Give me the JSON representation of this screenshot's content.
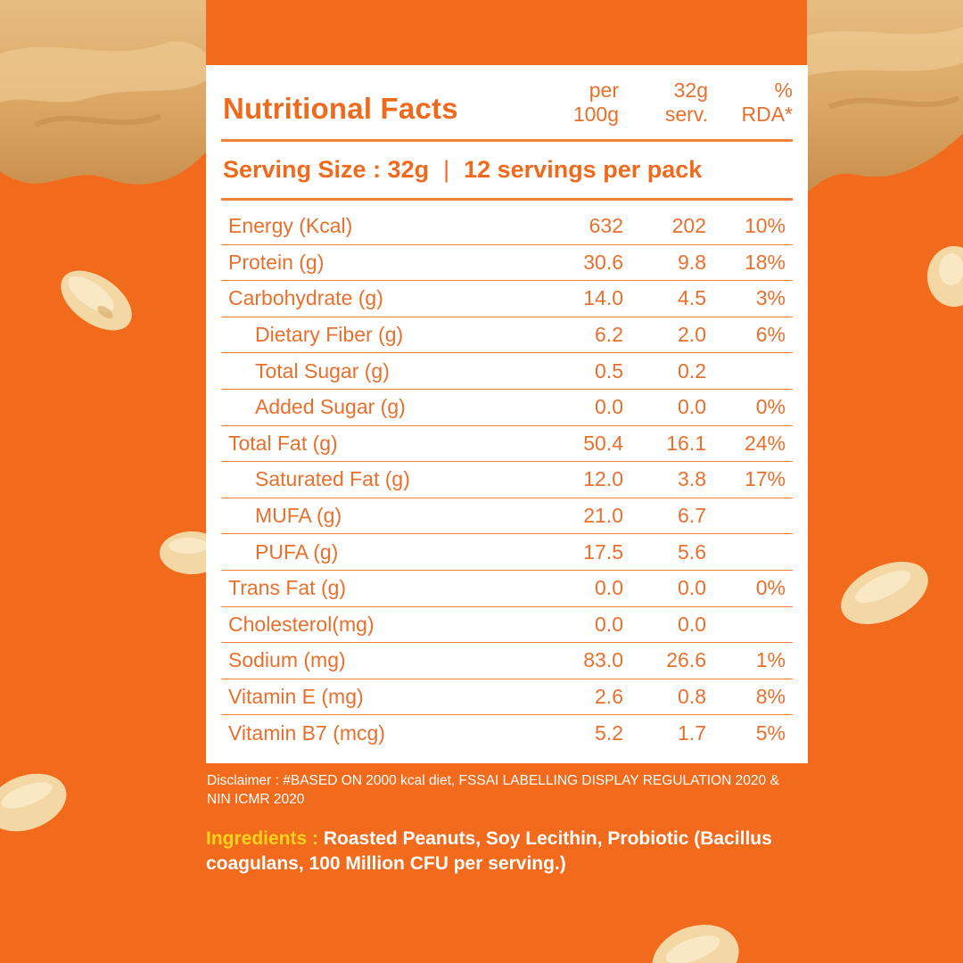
{
  "colors": {
    "background": "#f26a1b",
    "accent_text": "#f06a1d",
    "table_line": "#f0833a",
    "panel": "#ffffff",
    "ingredients_label": "#ffd21e",
    "butter": "#e0ad6e"
  },
  "table": {
    "title": "Nutritional Facts",
    "col_headers": [
      "per\n100g",
      "32g\nserv.",
      "%\nRDA*"
    ],
    "serving_size": "Serving Size : 32g",
    "separator": "|",
    "servings_per_pack": "12 servings per pack",
    "rows": [
      {
        "label": "Energy (Kcal)",
        "per100g": "632",
        "serv": "202",
        "rda": "10%"
      },
      {
        "label": "Protein (g)",
        "per100g": "30.6",
        "serv": "9.8",
        "rda": "18%"
      },
      {
        "label": "Carbohydrate (g)",
        "per100g": "14.0",
        "serv": "4.5",
        "rda": "3%"
      },
      {
        "label": "Dietary Fiber (g)",
        "per100g": "6.2",
        "serv": "2.0",
        "rda": "6%"
      },
      {
        "label": "Total Sugar (g)",
        "per100g": "0.5",
        "serv": "0.2",
        "rda": ""
      },
      {
        "label": "Added Sugar (g)",
        "per100g": "0.0",
        "serv": "0.0",
        "rda": "0%"
      },
      {
        "label": "Total Fat (g)",
        "per100g": "50.4",
        "serv": "16.1",
        "rda": "24%"
      },
      {
        "label": "Saturated Fat (g)",
        "per100g": "12.0",
        "serv": "3.8",
        "rda": "17%"
      },
      {
        "label": "MUFA (g)",
        "per100g": "21.0",
        "serv": "6.7",
        "rda": ""
      },
      {
        "label": "PUFA (g)",
        "per100g": "17.5",
        "serv": "5.6",
        "rda": ""
      },
      {
        "label": "Trans Fat (g)",
        "per100g": "0.0",
        "serv": "0.0",
        "rda": "0%"
      },
      {
        "label": "Cholesterol(mg)",
        "per100g": "0.0",
        "serv": "0.0",
        "rda": ""
      },
      {
        "label": "Sodium (mg)",
        "per100g": "83.0",
        "serv": "26.6",
        "rda": "1%"
      },
      {
        "label": "Vitamin E (mg)",
        "per100g": "2.6",
        "serv": "0.8",
        "rda": "8%"
      },
      {
        "label": "Vitamin B7 (mcg)",
        "per100g": "5.2",
        "serv": "1.7",
        "rda": "5%"
      }
    ]
  },
  "disclaimer": "Disclaimer : #BASED ON 2000 kcal diet, FSSAI LABELLING DISPLAY REGULATION 2020 & NIN ICMR 2020",
  "ingredients": {
    "label": "Ingredients :",
    "text": "Roasted Peanuts, Soy Lecithin, Probiotic (Bacillus coagulans, 100 Million CFU per serving.)"
  },
  "decor": {
    "background_icon": "peanut-butter-swirl-icon",
    "peanut_icon": "peanut-icon"
  }
}
